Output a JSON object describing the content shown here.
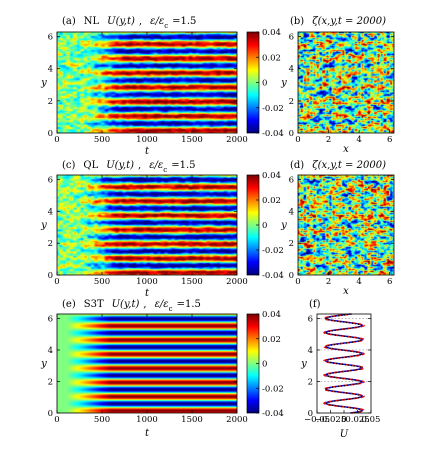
{
  "chart_data": [
    {
      "panel": "(a)",
      "type": "heatmap",
      "title_parts": [
        "(a)",
        "NL",
        "U(y,t)",
        ",",
        "ε/ε",
        "c",
        "=1.5"
      ],
      "xlabel": "t",
      "ylabel": "y",
      "xlim": [
        0,
        2000
      ],
      "ylim": [
        0,
        6.2832
      ],
      "x_ticks": [
        "0",
        "500",
        "1000",
        "1500",
        "2000"
      ],
      "y_ticks": [
        "0",
        "2",
        "4",
        "6"
      ],
      "colorbar": {
        "min": -0.04,
        "max": 0.04,
        "ticks": [
          "0.04",
          "0.02",
          "0",
          "-0.02",
          "-0.04"
        ]
      },
      "jets": {
        "count": 7,
        "onset_t": 500,
        "amplitude_late": 0.035
      }
    },
    {
      "panel": "(b)",
      "type": "heatmap",
      "title_parts": [
        "(b)",
        "ζ(x,y,t = 2000)"
      ],
      "xlabel": "x",
      "ylabel": "y",
      "xlim": [
        0,
        6.2832
      ],
      "ylim": [
        0,
        6.2832
      ],
      "x_ticks": [
        "0",
        "2",
        "4",
        "6"
      ],
      "y_ticks": [
        "0",
        "2",
        "4",
        "6"
      ]
    },
    {
      "panel": "(c)",
      "type": "heatmap",
      "title_parts": [
        "(c)",
        "QL",
        "U(y,t)",
        ",",
        "ε/ε",
        "c",
        "=1.5"
      ],
      "xlabel": "t",
      "ylabel": "y",
      "xlim": [
        0,
        2000
      ],
      "ylim": [
        0,
        6.2832
      ],
      "x_ticks": [
        "0",
        "500",
        "1000",
        "1500",
        "2000"
      ],
      "y_ticks": [
        "0",
        "2",
        "4",
        "6"
      ],
      "colorbar": {
        "min": -0.04,
        "max": 0.04,
        "ticks": [
          "0.04",
          "0.02",
          "0",
          "-0.02",
          "-0.04"
        ]
      },
      "jets": {
        "count": 7,
        "onset_t": 450,
        "amplitude_late": 0.035
      }
    },
    {
      "panel": "(d)",
      "type": "heatmap",
      "title_parts": [
        "(d)",
        "ζ(x,y,t = 2000)"
      ],
      "xlabel": "x",
      "ylabel": "y",
      "xlim": [
        0,
        6.2832
      ],
      "ylim": [
        0,
        6.2832
      ],
      "x_ticks": [
        "0",
        "2",
        "4",
        "6"
      ],
      "y_ticks": [
        "0",
        "2",
        "4",
        "6"
      ]
    },
    {
      "panel": "(e)",
      "type": "heatmap",
      "title_parts": [
        "(e)",
        "S3T",
        "U(y,t)",
        ",",
        "ε/ε",
        "c",
        "=1.5"
      ],
      "xlabel": "t",
      "ylabel": "y",
      "xlim": [
        0,
        2000
      ],
      "ylim": [
        0,
        6.2832
      ],
      "x_ticks": [
        "0",
        "500",
        "1000",
        "1500",
        "2000"
      ],
      "y_ticks": [
        "0",
        "2",
        "4",
        "6"
      ],
      "colorbar": {
        "min": -0.04,
        "max": 0.04,
        "ticks": [
          "0.04",
          "0.02",
          "0",
          "-0.02",
          "-0.04"
        ]
      },
      "jets": {
        "count": 7,
        "onset_t": 350,
        "amplitude_late": 0.04
      }
    },
    {
      "panel": "(f)",
      "type": "line",
      "title_parts": [
        "(f)"
      ],
      "xlabel": "U",
      "ylabel": "y",
      "xlim": [
        -0.05,
        0.05
      ],
      "ylim": [
        0,
        6.2832
      ],
      "x_ticks": [
        "−0.05",
        "−0.025",
        "0",
        "0.025",
        "0.05"
      ],
      "y_ticks": [
        "0",
        "2",
        "4",
        "6"
      ],
      "reference_lines_y": [
        2,
        4,
        6
      ],
      "series": [
        {
          "color": "#1010e0",
          "style": "solid",
          "amplitude": 0.034,
          "wavenumber": 7
        },
        {
          "color": "#e01010",
          "style": "dashed",
          "amplitude": 0.037,
          "wavenumber": 7
        },
        {
          "color": "#000000",
          "style": "dotted",
          "amplitude": 0.032,
          "wavenumber": 7
        }
      ]
    }
  ]
}
